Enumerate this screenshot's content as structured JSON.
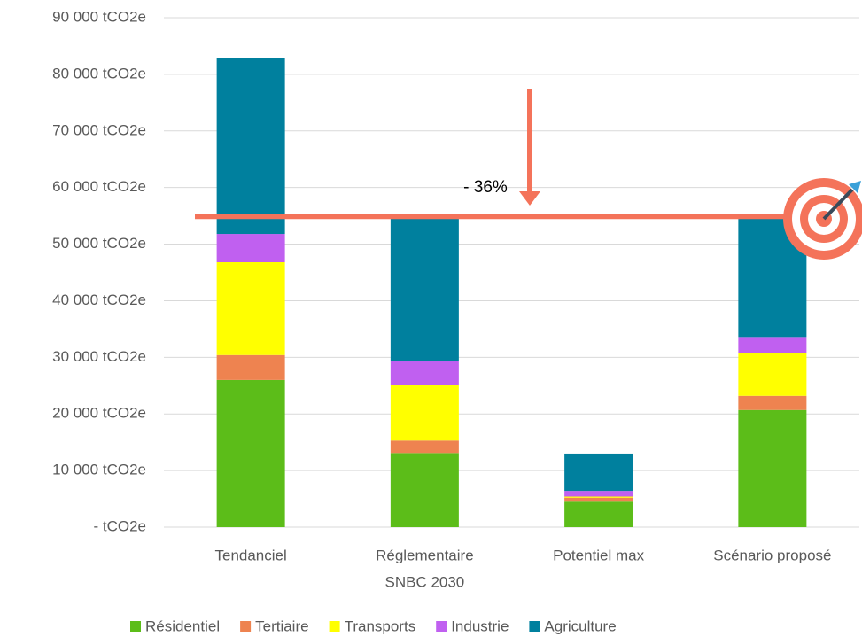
{
  "chart_data": {
    "type": "stacked_bar",
    "categories": [
      [
        "Tendanciel"
      ],
      [
        "Réglementaire",
        "SNBC 2030"
      ],
      [
        "Potentiel max"
      ],
      [
        "Scénario proposé"
      ]
    ],
    "series": [
      {
        "name": "Résidentiel",
        "color": "#5cbd19",
        "values": [
          26000,
          13100,
          4500,
          20700
        ]
      },
      {
        "name": "Tertiaire",
        "color": "#ee8350",
        "values": [
          4400,
          2200,
          700,
          2500
        ]
      },
      {
        "name": "Transports",
        "color": "#ffff00",
        "values": [
          16400,
          9900,
          200,
          7600
        ]
      },
      {
        "name": "Industrie",
        "color": "#c060f0",
        "values": [
          5000,
          4100,
          1000,
          2800
        ]
      },
      {
        "name": "Agriculture",
        "color": "#00809e",
        "values": [
          31000,
          25500,
          6600,
          21200
        ]
      }
    ],
    "ylim": [
      0,
      90000
    ],
    "yticks": [
      {
        "value": 0,
        "label": "-   tCO2e"
      },
      {
        "value": 10000,
        "label": "10 000  tCO2e"
      },
      {
        "value": 20000,
        "label": "20 000  tCO2e"
      },
      {
        "value": 30000,
        "label": "30 000  tCO2e"
      },
      {
        "value": 40000,
        "label": "40 000  tCO2e"
      },
      {
        "value": 50000,
        "label": "50 000  tCO2e"
      },
      {
        "value": 60000,
        "label": "60 000  tCO2e"
      },
      {
        "value": 70000,
        "label": "70 000  tCO2e"
      },
      {
        "value": 80000,
        "label": "80 000  tCO2e"
      },
      {
        "value": 90000,
        "label": {
          "value": 90000,
          "label": "90 000  tCO2e"
        }
      }
    ],
    "grid": true,
    "legend": "bottom",
    "reference_line": {
      "value": 54900,
      "color": "#f4735a",
      "label": "- 36%"
    }
  }
}
